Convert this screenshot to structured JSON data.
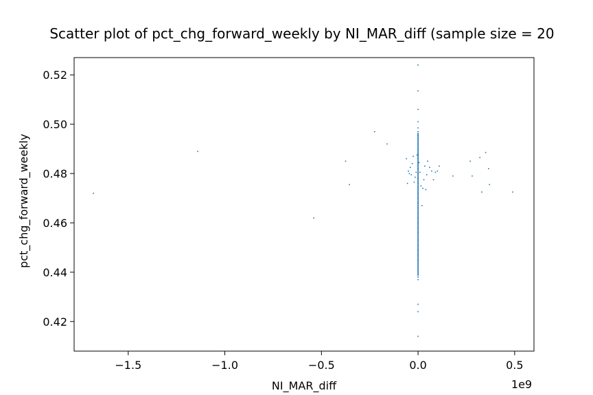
{
  "chart_data": {
    "type": "scatter",
    "title": "Scatter plot of pct_chg_forward_weekly by NI_MAR_diff (sample size = 20",
    "xlabel": "NI_MAR_diff",
    "ylabel": "pct_chg_forward_weekly",
    "x_offset_label": "1e9",
    "xlim": [
      -1.78,
      0.6
    ],
    "ylim": [
      0.408,
      0.527
    ],
    "x_ticks": [
      -1.5,
      -1.0,
      -0.5,
      0.0,
      0.5
    ],
    "x_tick_labels": [
      "−1.5",
      "−1.0",
      "−0.5",
      "0.0",
      "0.5"
    ],
    "y_ticks": [
      0.42,
      0.44,
      0.46,
      0.48,
      0.5,
      0.52
    ],
    "y_tick_labels": [
      "0.42",
      "0.44",
      "0.46",
      "0.48",
      "0.50",
      "0.52"
    ],
    "grid": false,
    "legend": "none",
    "marker_color": "#1f77b4",
    "series": [
      {
        "x": [
          -1.68,
          -1.14,
          -0.54,
          -0.375,
          -0.355,
          -0.225,
          -0.16,
          -0.06,
          -0.055,
          -0.05,
          -0.045,
          -0.04,
          -0.035,
          -0.03,
          -0.025,
          -0.02,
          -0.015,
          -0.01,
          -0.005,
          0.0,
          0.0,
          0.0,
          0.0,
          0.0,
          0.0,
          0.0,
          0.0,
          0.0,
          0.0,
          0.0,
          0.0,
          0.0,
          0.0,
          0.0,
          0.0,
          0.0,
          0.0,
          0.0,
          0.0,
          0.0,
          0.0,
          0.0,
          0.0,
          0.0,
          0.0,
          0.0,
          0.0,
          0.0,
          0.0,
          0.0,
          0.0,
          0.0,
          0.0,
          0.0,
          0.0,
          0.0,
          0.005,
          0.01,
          0.015,
          0.02,
          0.025,
          0.03,
          0.035,
          0.04,
          0.045,
          0.05,
          0.06,
          0.07,
          0.08,
          0.09,
          0.1,
          0.11,
          0.18,
          0.27,
          0.28,
          0.32,
          0.33,
          0.35,
          0.365,
          0.37,
          0.49
        ],
        "y": [
          0.472,
          0.489,
          0.462,
          0.485,
          0.4755,
          0.497,
          0.492,
          0.486,
          0.476,
          0.481,
          0.48,
          0.4825,
          0.4795,
          0.484,
          0.487,
          0.4765,
          0.4785,
          0.4805,
          0.4875,
          0.524,
          0.5135,
          0.506,
          0.501,
          0.4985,
          0.497,
          0.4955,
          0.494,
          0.492,
          0.49,
          0.488,
          0.486,
          0.484,
          0.482,
          0.48,
          0.478,
          0.476,
          0.474,
          0.472,
          0.47,
          0.468,
          0.466,
          0.464,
          0.462,
          0.46,
          0.458,
          0.456,
          0.453,
          0.451,
          0.449,
          0.447,
          0.445,
          0.438,
          0.437,
          0.427,
          0.424,
          0.414,
          0.4845,
          0.4805,
          0.475,
          0.467,
          0.474,
          0.4775,
          0.483,
          0.4735,
          0.4795,
          0.485,
          0.4825,
          0.481,
          0.4775,
          0.4805,
          0.481,
          0.483,
          0.479,
          0.485,
          0.479,
          0.4865,
          0.4725,
          0.4885,
          0.482,
          0.4755,
          0.4725
        ]
      }
    ]
  }
}
